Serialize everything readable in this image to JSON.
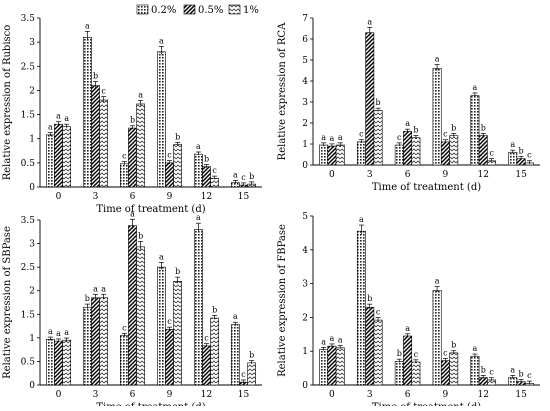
{
  "legend": {
    "items": [
      {
        "label": "0.2%",
        "pattern": "dots"
      },
      {
        "label": "0.5%",
        "pattern": "diag"
      },
      {
        "label": "1%",
        "pattern": "zig"
      }
    ]
  },
  "chart_data": [
    {
      "type": "bar",
      "xlabel": "Time of treatment (d)",
      "ylabel": "Relative expression of Rubisco",
      "ylim": [
        0,
        3.5
      ],
      "yticks": [
        "0",
        "0.5",
        "1",
        "1.5",
        "2",
        "2.5",
        "3",
        "3.5"
      ],
      "categories": [
        "0",
        "3",
        "6",
        "9",
        "12",
        "15"
      ],
      "series": [
        {
          "name": "0.2%",
          "values": [
            1.08,
            3.1,
            0.48,
            2.8,
            0.68,
            0.09
          ],
          "letters": [
            "a",
            "a",
            "c",
            "a",
            "a",
            "a"
          ]
        },
        {
          "name": "0.5%",
          "values": [
            1.3,
            2.1,
            1.22,
            0.5,
            0.42,
            0.04
          ],
          "letters": [
            "a",
            "b",
            "b",
            "c",
            "b",
            "c"
          ]
        },
        {
          "name": "1%",
          "values": [
            1.25,
            1.8,
            1.72,
            0.88,
            0.18,
            0.06
          ],
          "letters": [
            "a",
            "c",
            "a",
            "b",
            "c",
            "b"
          ]
        }
      ]
    },
    {
      "type": "bar",
      "xlabel": "Time of treatment (d)",
      "ylabel": "Relative expression of RCA",
      "ylim": [
        0,
        7
      ],
      "yticks": [
        "0",
        "1",
        "2",
        "3",
        "4",
        "5",
        "6",
        "7"
      ],
      "categories": [
        "0",
        "3",
        "6",
        "9",
        "12",
        "15"
      ],
      "series": [
        {
          "name": "0.2%",
          "values": [
            0.95,
            1.1,
            0.95,
            4.6,
            3.3,
            0.6
          ],
          "letters": [
            "a",
            "c",
            "c",
            "a",
            "a",
            "a"
          ]
        },
        {
          "name": "0.5%",
          "values": [
            0.9,
            6.3,
            1.6,
            1.1,
            1.4,
            0.3
          ],
          "letters": [
            "a",
            "a",
            "a",
            "c",
            "b",
            "b"
          ]
        },
        {
          "name": "1%",
          "values": [
            0.95,
            2.6,
            1.3,
            1.4,
            0.2,
            0.1
          ],
          "letters": [
            "a",
            "b",
            "b",
            "b",
            "c",
            "c"
          ]
        }
      ]
    },
    {
      "type": "bar",
      "xlabel": "Time of treatment (d)",
      "ylabel": "Relative expression of SBPase",
      "ylim": [
        0,
        3.5
      ],
      "yticks": [
        "0",
        "0.5",
        "1",
        "1.5",
        "2",
        "2.5",
        "3",
        "3.5"
      ],
      "categories": [
        "0",
        "3",
        "6",
        "9",
        "12",
        "15"
      ],
      "series": [
        {
          "name": "0.2%",
          "values": [
            0.97,
            1.65,
            1.05,
            2.5,
            3.3,
            1.28
          ],
          "letters": [
            "a",
            "b",
            "c",
            "a",
            "a",
            "a"
          ]
        },
        {
          "name": "0.5%",
          "values": [
            0.93,
            1.85,
            3.38,
            1.18,
            0.83,
            0.06
          ],
          "letters": [
            "a",
            "a",
            "a",
            "c",
            "c",
            "c"
          ]
        },
        {
          "name": "1%",
          "values": [
            0.95,
            1.85,
            2.93,
            2.2,
            1.42,
            0.47
          ],
          "letters": [
            "a",
            "a",
            "b",
            "b",
            "b",
            "b"
          ]
        }
      ]
    },
    {
      "type": "bar",
      "xlabel": "Time of treatment (d)",
      "ylabel": "Relative expression of FBPase",
      "ylim": [
        0,
        5
      ],
      "yticks": [
        "0",
        "1",
        "2",
        "3",
        "4",
        "5"
      ],
      "categories": [
        "0",
        "3",
        "6",
        "9",
        "12",
        "15"
      ],
      "series": [
        {
          "name": "0.2%",
          "values": [
            1.05,
            4.55,
            0.7,
            2.8,
            0.85,
            0.22
          ],
          "letters": [
            "a",
            "a",
            "b",
            "a",
            "a",
            "a"
          ]
        },
        {
          "name": "0.5%",
          "values": [
            1.15,
            2.3,
            1.45,
            0.72,
            0.22,
            0.1
          ],
          "letters": [
            "a",
            "b",
            "a",
            "c",
            "b",
            "b"
          ]
        },
        {
          "name": "1%",
          "values": [
            1.1,
            1.92,
            0.68,
            0.95,
            0.15,
            0.05
          ],
          "letters": [
            "a",
            "c",
            "c",
            "b",
            "c",
            "c"
          ]
        }
      ]
    }
  ]
}
